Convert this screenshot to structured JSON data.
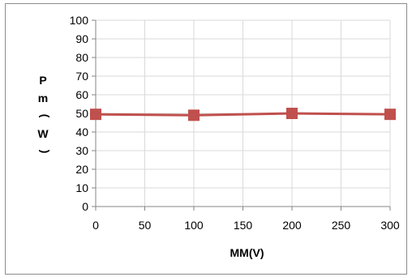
{
  "chart_data": {
    "type": "line",
    "title": "",
    "xlabel": "MM(V)",
    "ylabel_chars": [
      "P",
      "m",
      ")",
      "W",
      "("
    ],
    "x": [
      0,
      100,
      200,
      300
    ],
    "series": [
      {
        "values": [
          49.5,
          49,
          50,
          49.5
        ],
        "color": "#c0504d",
        "marker": "square"
      }
    ],
    "xlim": [
      0,
      300
    ],
    "ylim": [
      0,
      100
    ],
    "xticks": [
      0,
      50,
      100,
      150,
      200,
      250,
      300
    ],
    "yticks": [
      0,
      10,
      20,
      30,
      40,
      50,
      60,
      70,
      80,
      90,
      100
    ],
    "grid": true
  }
}
